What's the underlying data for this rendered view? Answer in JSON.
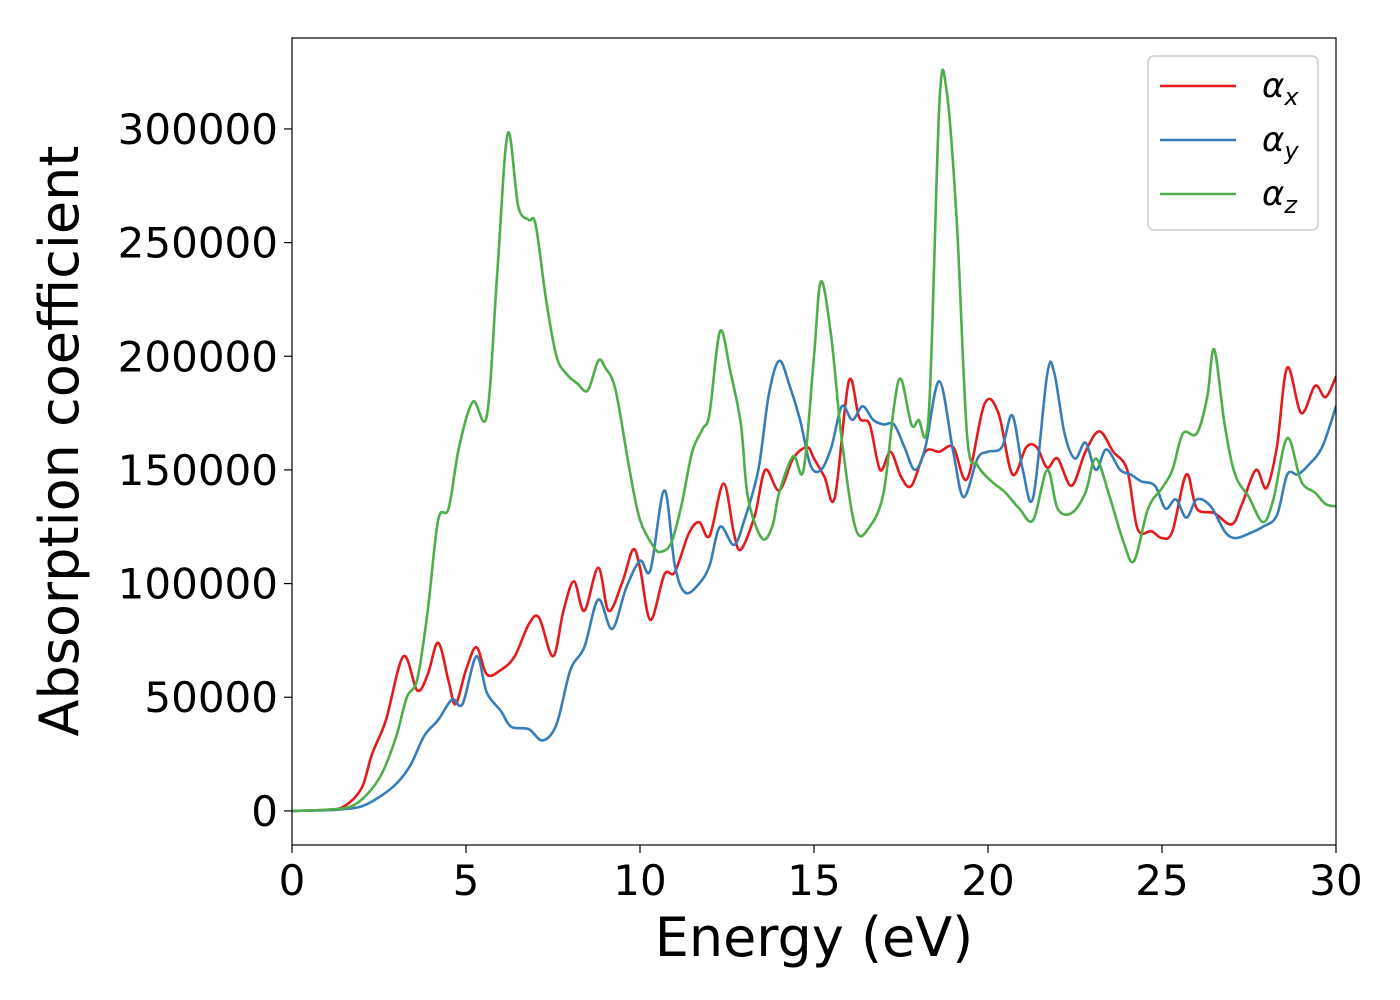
{
  "chart_data": {
    "type": "line",
    "xlabel": "Energy (eV)",
    "ylabel": "Absorption coefficient",
    "xlim": [
      0,
      30
    ],
    "ylim": [
      -15000,
      340000
    ],
    "x_ticks": [
      "0",
      "5",
      "10",
      "15",
      "20",
      "25",
      "30"
    ],
    "y_ticks": [
      "0",
      "50000",
      "100000",
      "150000",
      "200000",
      "250000",
      "300000"
    ],
    "grid": false,
    "legend_position": "top-right",
    "series": [
      {
        "name": "α_x",
        "legend_base": "α",
        "legend_sub": "x",
        "color": "#e41a1c",
        "points": [
          [
            0,
            0
          ],
          [
            1,
            500
          ],
          [
            1.5,
            2000
          ],
          [
            2.0,
            10000
          ],
          [
            2.3,
            25000
          ],
          [
            2.7,
            40000
          ],
          [
            3.2,
            68000
          ],
          [
            3.6,
            53000
          ],
          [
            3.9,
            60000
          ],
          [
            4.2,
            74000
          ],
          [
            4.5,
            57000
          ],
          [
            4.7,
            47000
          ],
          [
            5.0,
            62000
          ],
          [
            5.3,
            72000
          ],
          [
            5.6,
            60000
          ],
          [
            6.0,
            62000
          ],
          [
            6.4,
            68000
          ],
          [
            6.8,
            82000
          ],
          [
            7.1,
            85000
          ],
          [
            7.5,
            68000
          ],
          [
            7.8,
            88000
          ],
          [
            8.1,
            101000
          ],
          [
            8.4,
            88000
          ],
          [
            8.8,
            107000
          ],
          [
            9.1,
            88000
          ],
          [
            9.5,
            101000
          ],
          [
            9.8,
            115000
          ],
          [
            10.0,
            107000
          ],
          [
            10.3,
            84000
          ],
          [
            10.7,
            104000
          ],
          [
            11.0,
            105000
          ],
          [
            11.4,
            122000
          ],
          [
            11.7,
            127000
          ],
          [
            12.0,
            121000
          ],
          [
            12.4,
            144000
          ],
          [
            12.7,
            122000
          ],
          [
            12.9,
            115000
          ],
          [
            13.3,
            130000
          ],
          [
            13.6,
            150000
          ],
          [
            14.0,
            141000
          ],
          [
            14.4,
            155000
          ],
          [
            14.8,
            160000
          ],
          [
            15.0,
            155000
          ],
          [
            15.3,
            147000
          ],
          [
            15.6,
            138000
          ],
          [
            16.0,
            189000
          ],
          [
            16.3,
            173000
          ],
          [
            16.6,
            170000
          ],
          [
            16.9,
            150000
          ],
          [
            17.2,
            158000
          ],
          [
            17.5,
            147000
          ],
          [
            17.8,
            143000
          ],
          [
            18.2,
            158000
          ],
          [
            18.6,
            158000
          ],
          [
            19.0,
            160000
          ],
          [
            19.4,
            146000
          ],
          [
            19.9,
            179000
          ],
          [
            20.3,
            175000
          ],
          [
            20.7,
            148000
          ],
          [
            21.1,
            160000
          ],
          [
            21.4,
            160000
          ],
          [
            21.7,
            151000
          ],
          [
            22.0,
            155000
          ],
          [
            22.4,
            143000
          ],
          [
            22.8,
            158000
          ],
          [
            23.2,
            167000
          ],
          [
            23.6,
            158000
          ],
          [
            24.0,
            150000
          ],
          [
            24.3,
            124000
          ],
          [
            24.7,
            123000
          ],
          [
            25.0,
            120000
          ],
          [
            25.3,
            123000
          ],
          [
            25.7,
            148000
          ],
          [
            26.0,
            133000
          ],
          [
            26.5,
            131000
          ],
          [
            27.0,
            126000
          ],
          [
            27.3,
            135000
          ],
          [
            27.7,
            150000
          ],
          [
            28.0,
            142000
          ],
          [
            28.3,
            160000
          ],
          [
            28.6,
            195000
          ],
          [
            29.0,
            175000
          ],
          [
            29.4,
            187000
          ],
          [
            29.7,
            182000
          ],
          [
            30.0,
            191000
          ]
        ]
      },
      {
        "name": "α_y",
        "legend_base": "α",
        "legend_sub": "y",
        "color": "#377eb8",
        "points": [
          [
            0,
            0
          ],
          [
            1,
            300
          ],
          [
            1.5,
            800
          ],
          [
            2.0,
            2000
          ],
          [
            2.5,
            6000
          ],
          [
            3.0,
            12000
          ],
          [
            3.4,
            20000
          ],
          [
            3.8,
            33000
          ],
          [
            4.2,
            40000
          ],
          [
            4.6,
            49000
          ],
          [
            4.9,
            47000
          ],
          [
            5.3,
            68000
          ],
          [
            5.6,
            52000
          ],
          [
            6.0,
            44000
          ],
          [
            6.3,
            37000
          ],
          [
            6.8,
            36000
          ],
          [
            7.2,
            31000
          ],
          [
            7.6,
            38000
          ],
          [
            8.0,
            62000
          ],
          [
            8.4,
            72000
          ],
          [
            8.8,
            93000
          ],
          [
            9.2,
            80000
          ],
          [
            9.6,
            98000
          ],
          [
            10.0,
            110000
          ],
          [
            10.3,
            106000
          ],
          [
            10.7,
            141000
          ],
          [
            11.0,
            108000
          ],
          [
            11.3,
            96000
          ],
          [
            11.7,
            100000
          ],
          [
            12.0,
            108000
          ],
          [
            12.3,
            125000
          ],
          [
            12.7,
            117000
          ],
          [
            13.0,
            128000
          ],
          [
            13.4,
            150000
          ],
          [
            13.7,
            183000
          ],
          [
            14.0,
            198000
          ],
          [
            14.3,
            187000
          ],
          [
            14.6,
            172000
          ],
          [
            14.9,
            152000
          ],
          [
            15.2,
            150000
          ],
          [
            15.5,
            160000
          ],
          [
            15.8,
            178000
          ],
          [
            16.1,
            172000
          ],
          [
            16.4,
            178000
          ],
          [
            16.7,
            172000
          ],
          [
            17.0,
            170000
          ],
          [
            17.3,
            170000
          ],
          [
            17.6,
            160000
          ],
          [
            17.9,
            150000
          ],
          [
            18.2,
            160000
          ],
          [
            18.6,
            189000
          ],
          [
            19.0,
            158000
          ],
          [
            19.3,
            138000
          ],
          [
            19.7,
            155000
          ],
          [
            20.0,
            158000
          ],
          [
            20.4,
            160000
          ],
          [
            20.7,
            174000
          ],
          [
            21.0,
            150000
          ],
          [
            21.3,
            138000
          ],
          [
            21.7,
            192000
          ],
          [
            21.9,
            193000
          ],
          [
            22.2,
            166000
          ],
          [
            22.5,
            155000
          ],
          [
            22.8,
            162000
          ],
          [
            23.1,
            150000
          ],
          [
            23.4,
            159000
          ],
          [
            23.8,
            150000
          ],
          [
            24.1,
            148000
          ],
          [
            24.4,
            145000
          ],
          [
            24.8,
            143000
          ],
          [
            25.1,
            133000
          ],
          [
            25.4,
            137000
          ],
          [
            25.7,
            129000
          ],
          [
            26.0,
            137000
          ],
          [
            26.4,
            134000
          ],
          [
            26.8,
            123000
          ],
          [
            27.1,
            120000
          ],
          [
            27.5,
            122000
          ],
          [
            27.9,
            125000
          ],
          [
            28.3,
            130000
          ],
          [
            28.6,
            148000
          ],
          [
            28.9,
            148000
          ],
          [
            29.2,
            152000
          ],
          [
            29.6,
            160000
          ],
          [
            30.0,
            178000
          ]
        ]
      },
      {
        "name": "α_z",
        "legend_base": "α",
        "legend_sub": "z",
        "color": "#4daf4a",
        "points": [
          [
            0,
            0
          ],
          [
            1,
            500
          ],
          [
            1.7,
            2000
          ],
          [
            2.2,
            8000
          ],
          [
            2.6,
            17000
          ],
          [
            3.0,
            33000
          ],
          [
            3.3,
            50000
          ],
          [
            3.6,
            58000
          ],
          [
            3.9,
            88000
          ],
          [
            4.2,
            128000
          ],
          [
            4.5,
            133000
          ],
          [
            4.8,
            160000
          ],
          [
            5.2,
            180000
          ],
          [
            5.6,
            174000
          ],
          [
            5.9,
            237000
          ],
          [
            6.2,
            298000
          ],
          [
            6.5,
            266000
          ],
          [
            6.8,
            260000
          ],
          [
            7.0,
            258000
          ],
          [
            7.3,
            225000
          ],
          [
            7.6,
            200000
          ],
          [
            7.9,
            192000
          ],
          [
            8.2,
            188000
          ],
          [
            8.5,
            185000
          ],
          [
            8.8,
            198000
          ],
          [
            9.0,
            195000
          ],
          [
            9.3,
            185000
          ],
          [
            9.7,
            150000
          ],
          [
            10.0,
            128000
          ],
          [
            10.4,
            116000
          ],
          [
            10.6,
            114000
          ],
          [
            10.9,
            118000
          ],
          [
            11.2,
            135000
          ],
          [
            11.5,
            158000
          ],
          [
            11.8,
            168000
          ],
          [
            12.0,
            175000
          ],
          [
            12.3,
            211000
          ],
          [
            12.6,
            193000
          ],
          [
            12.9,
            170000
          ],
          [
            13.1,
            138000
          ],
          [
            13.5,
            120000
          ],
          [
            13.8,
            125000
          ],
          [
            14.0,
            140000
          ],
          [
            14.4,
            156000
          ],
          [
            14.7,
            150000
          ],
          [
            15.0,
            200000
          ],
          [
            15.2,
            233000
          ],
          [
            15.5,
            208000
          ],
          [
            15.8,
            163000
          ],
          [
            16.2,
            124000
          ],
          [
            16.6,
            125000
          ],
          [
            17.0,
            140000
          ],
          [
            17.3,
            178000
          ],
          [
            17.5,
            190000
          ],
          [
            17.8,
            170000
          ],
          [
            18.0,
            172000
          ],
          [
            18.3,
            175000
          ],
          [
            18.6,
            310000
          ],
          [
            18.8,
            318000
          ],
          [
            19.1,
            260000
          ],
          [
            19.4,
            165000
          ],
          [
            19.7,
            152000
          ],
          [
            20.1,
            145000
          ],
          [
            20.5,
            140000
          ],
          [
            20.9,
            133000
          ],
          [
            21.3,
            128000
          ],
          [
            21.7,
            150000
          ],
          [
            22.0,
            133000
          ],
          [
            22.4,
            131000
          ],
          [
            22.8,
            140000
          ],
          [
            23.1,
            155000
          ],
          [
            23.5,
            138000
          ],
          [
            23.9,
            118000
          ],
          [
            24.2,
            110000
          ],
          [
            24.6,
            133000
          ],
          [
            25.0,
            142000
          ],
          [
            25.3,
            150000
          ],
          [
            25.6,
            166000
          ],
          [
            26.0,
            166000
          ],
          [
            26.3,
            182000
          ],
          [
            26.5,
            203000
          ],
          [
            26.8,
            170000
          ],
          [
            27.1,
            148000
          ],
          [
            27.5,
            138000
          ],
          [
            27.9,
            127000
          ],
          [
            28.2,
            137000
          ],
          [
            28.6,
            164000
          ],
          [
            29.0,
            145000
          ],
          [
            29.4,
            140000
          ],
          [
            29.7,
            135000
          ],
          [
            30.0,
            134000
          ]
        ]
      }
    ]
  }
}
